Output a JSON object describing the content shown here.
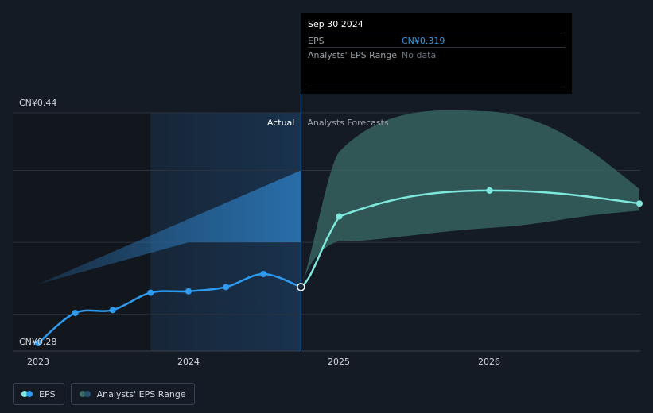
{
  "chart_data": {
    "type": "line",
    "y_axis": {
      "labels": [
        "CN¥0.44",
        "CN¥0.28"
      ],
      "range": [
        0.28,
        0.44
      ]
    },
    "x_axis": {
      "ticks": [
        "2023",
        "2024",
        "2025",
        "2026"
      ]
    },
    "divider_labels": {
      "actual": "Actual",
      "forecast": "Analysts Forecasts"
    },
    "series": [
      {
        "name": "EPS",
        "color": "#2d9cf0",
        "points": [
          {
            "x": "2023-01-01",
            "y": 0.28
          },
          {
            "x": "2023-04-01",
            "y": 0.301
          },
          {
            "x": "2023-07-01",
            "y": 0.303
          },
          {
            "x": "2023-10-01",
            "y": 0.315
          },
          {
            "x": "2024-01-01",
            "y": 0.316
          },
          {
            "x": "2024-04-01",
            "y": 0.319
          },
          {
            "x": "2024-07-01",
            "y": 0.328
          },
          {
            "x": "2024-09-30",
            "y": 0.319
          }
        ]
      },
      {
        "name": "EPS forecast",
        "color": "#7ee8dc",
        "points": [
          {
            "x": "2024-09-30",
            "y": 0.319
          },
          {
            "x": "2025-01-01",
            "y": 0.368
          },
          {
            "x": "2026-01-01",
            "y": 0.386
          },
          {
            "x": "2026-12-31",
            "y": 0.377
          }
        ]
      }
    ],
    "forecast_range": {
      "name": "Analysts' EPS Range",
      "color": "#3a6b67",
      "upper": [
        {
          "x": "2024-09-30",
          "y": 0.319
        },
        {
          "x": "2025-01-01",
          "y": 0.413
        },
        {
          "x": "2026-01-01",
          "y": 0.441
        },
        {
          "x": "2026-12-31",
          "y": 0.387
        }
      ],
      "lower": [
        {
          "x": "2024-09-30",
          "y": 0.319
        },
        {
          "x": "2025-01-01",
          "y": 0.351
        },
        {
          "x": "2026-01-01",
          "y": 0.36
        },
        {
          "x": "2026-12-31",
          "y": 0.372
        }
      ]
    },
    "past_range_band": {
      "color": "#2a74b3",
      "upper": [
        {
          "x": "2023-01-01",
          "y": 0.321
        },
        {
          "x": "2024-09-30",
          "y": 0.4
        }
      ],
      "lower": [
        {
          "x": "2023-01-01",
          "y": 0.321
        },
        {
          "x": "2024-01-01",
          "y": 0.35
        },
        {
          "x": "2024-09-30",
          "y": 0.35
        }
      ]
    },
    "grid": true
  },
  "tooltip": {
    "date": "Sep 30 2024",
    "eps_label": "EPS",
    "eps_value": "CN¥0.319",
    "range_label": "Analysts' EPS Range",
    "range_value": "No data"
  },
  "legend": {
    "eps_label": "EPS",
    "range_label": "Analysts' EPS Range"
  },
  "colors": {
    "background": "#151b24",
    "eps_line": "#2d9cf0",
    "forecast_line": "#7ee8dc",
    "forecast_band": "#3a6b67",
    "tooltip_value": "#2d9cf0"
  }
}
